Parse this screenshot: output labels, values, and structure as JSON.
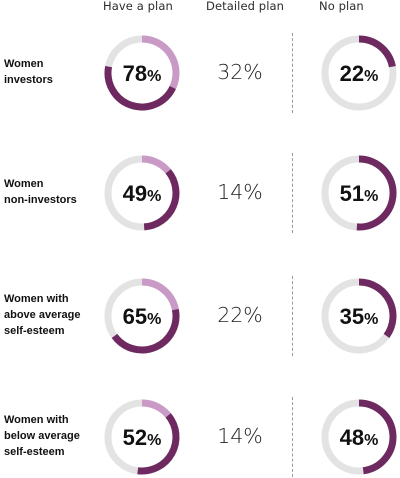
{
  "headers": {
    "have_plan": "Have a plan",
    "detailed_plan": "Detailed plan",
    "no_plan": "No plan"
  },
  "colors": {
    "dark_purple": "#6e2a60",
    "light_purple": "#c99ac6",
    "track_grey": "#e3e3e3",
    "divider": "#9a9a9a"
  },
  "chart_data": {
    "type": "donut",
    "title": "",
    "unit": "%",
    "segments_of_have_a_plan": [
      "Detailed plan",
      "Have a plan (not detailed)"
    ],
    "rows": [
      {
        "label_lines": [
          "Women",
          "investors"
        ],
        "have_plan": 78,
        "detailed_plan": 32,
        "no_plan": 22,
        "have_plan_text": "78",
        "detailed_plan_text": "32%",
        "no_plan_text": "22"
      },
      {
        "label_lines": [
          "Women",
          "non-investors"
        ],
        "have_plan": 49,
        "detailed_plan": 14,
        "no_plan": 51,
        "have_plan_text": "49",
        "detailed_plan_text": "14%",
        "no_plan_text": "51"
      },
      {
        "label_lines": [
          "Women with",
          "above average",
          "self-esteem"
        ],
        "have_plan": 65,
        "detailed_plan": 22,
        "no_plan": 35,
        "have_plan_text": "65",
        "detailed_plan_text": "22%",
        "no_plan_text": "35"
      },
      {
        "label_lines": [
          "Women with",
          "below average",
          "self-esteem"
        ],
        "have_plan": 52,
        "detailed_plan": 14,
        "no_plan": 48,
        "have_plan_text": "52",
        "detailed_plan_text": "14%",
        "no_plan_text": "48"
      }
    ]
  }
}
